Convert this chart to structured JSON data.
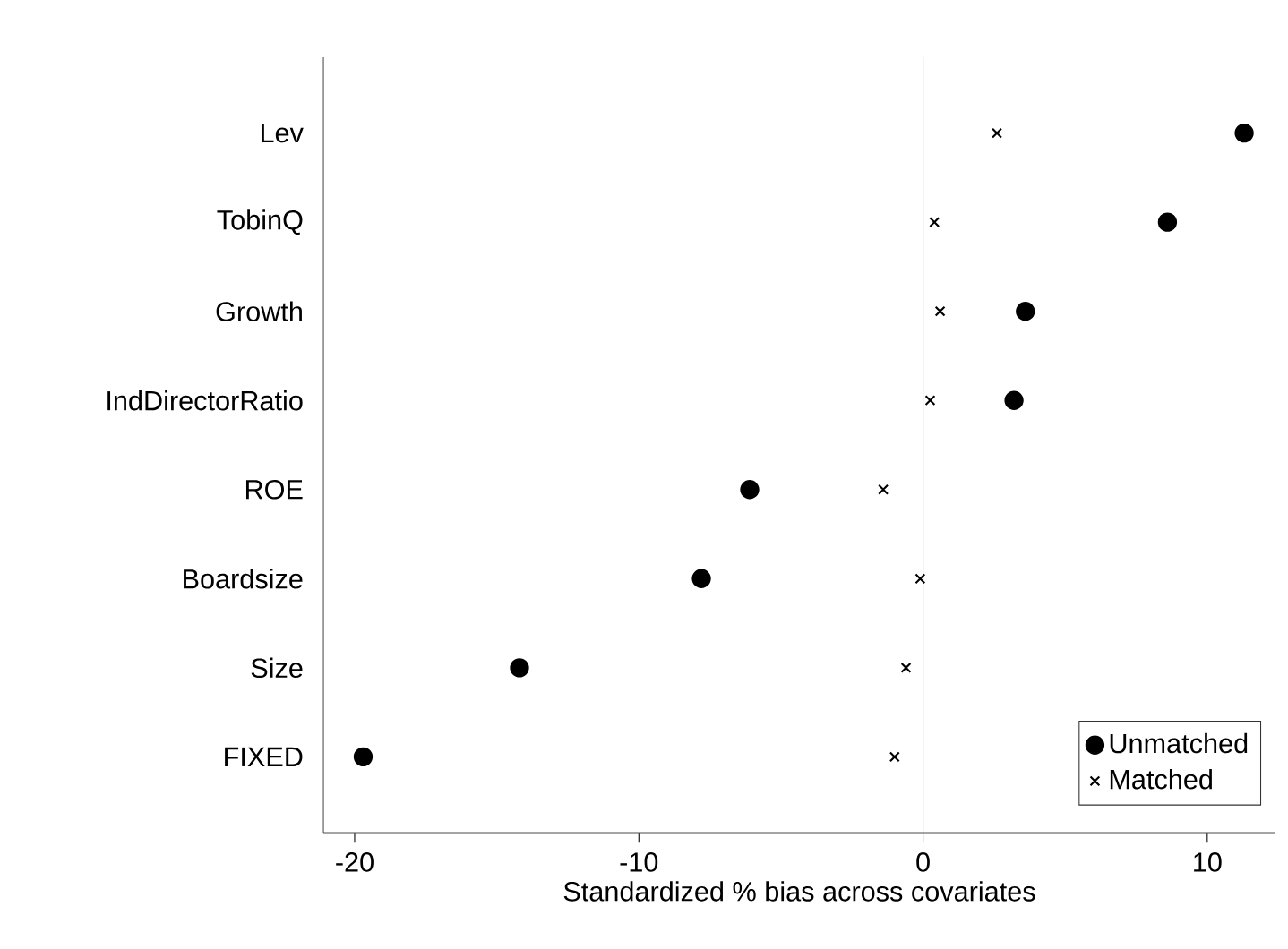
{
  "chart_data": {
    "type": "scatter",
    "orientation": "horizontal",
    "xlabel": "Standardized % bias across covariates",
    "categories": [
      "Lev",
      "TobinQ",
      "Growth",
      "IndDirectorRatio",
      "ROE",
      "Boardsize",
      "Size",
      "FIXED"
    ],
    "series": [
      {
        "name": "Unmatched",
        "color": "#000000",
        "marker": "circle",
        "values": [
          11.3,
          8.6,
          3.6,
          3.2,
          -6.1,
          -7.8,
          -14.2,
          -19.7
        ]
      },
      {
        "name": "Matched",
        "color": "#000000",
        "marker": "cross",
        "values": [
          2.6,
          0.4,
          0.6,
          0.25,
          -1.4,
          -0.1,
          -0.6,
          -1.0
        ]
      }
    ],
    "xlim": [
      -21.1,
      12.4
    ],
    "xticks": [
      -20,
      -10,
      0,
      10
    ],
    "ref_lines": [
      {
        "axis": "x",
        "value": 0,
        "color": "#808080"
      }
    ],
    "grid": false,
    "legend": "bottom right"
  }
}
